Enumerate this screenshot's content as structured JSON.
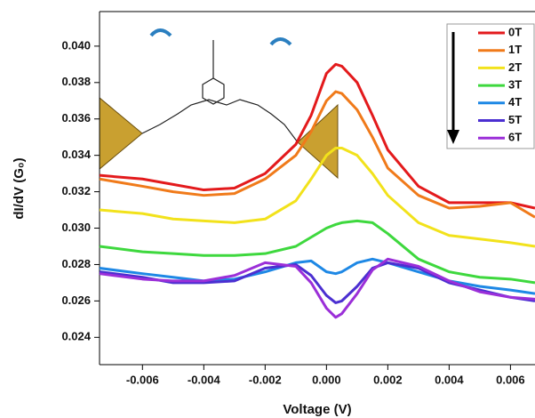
{
  "chart_data": {
    "type": "line",
    "x_label": "Voltage (V)",
    "y_label": "dI/dV (G₀)",
    "x": [
      -0.0074,
      -0.006,
      -0.005,
      -0.004,
      -0.003,
      -0.002,
      -0.001,
      -0.0005,
      0,
      0.0003,
      0.0005,
      0.001,
      0.0015,
      0.002,
      0.003,
      0.004,
      0.005,
      0.006,
      0.0068
    ],
    "series": [
      {
        "name": "0T",
        "color": "#e31a1c",
        "values": [
          0.0329,
          0.0327,
          0.0324,
          0.0321,
          0.0322,
          0.033,
          0.0346,
          0.0362,
          0.0385,
          0.039,
          0.0389,
          0.038,
          0.0362,
          0.0343,
          0.0323,
          0.0314,
          0.0314,
          0.0314,
          0.0311
        ]
      },
      {
        "name": "1T",
        "color": "#f07a1a",
        "values": [
          0.0327,
          0.0323,
          0.032,
          0.0318,
          0.0319,
          0.0327,
          0.034,
          0.0353,
          0.037,
          0.0375,
          0.0374,
          0.0365,
          0.035,
          0.0333,
          0.0318,
          0.0311,
          0.0312,
          0.0314,
          0.0306
        ]
      },
      {
        "name": "2T",
        "color": "#f2e21b",
        "values": [
          0.031,
          0.0308,
          0.0305,
          0.0304,
          0.0303,
          0.0305,
          0.0315,
          0.0327,
          0.034,
          0.0344,
          0.0344,
          0.034,
          0.033,
          0.0318,
          0.0303,
          0.0296,
          0.0294,
          0.0292,
          0.029
        ]
      },
      {
        "name": "3T",
        "color": "#3ed83e",
        "values": [
          0.029,
          0.0287,
          0.0286,
          0.0285,
          0.0285,
          0.0286,
          0.029,
          0.0295,
          0.03,
          0.0302,
          0.0303,
          0.0304,
          0.0303,
          0.0297,
          0.0283,
          0.0276,
          0.0273,
          0.0272,
          0.027
        ]
      },
      {
        "name": "4T",
        "color": "#1e88e5",
        "values": [
          0.0278,
          0.0275,
          0.0273,
          0.0271,
          0.0272,
          0.0276,
          0.0281,
          0.0282,
          0.0276,
          0.0275,
          0.0276,
          0.0281,
          0.0283,
          0.0281,
          0.0276,
          0.0271,
          0.0268,
          0.0266,
          0.0264
        ]
      },
      {
        "name": "5T",
        "color": "#4b2fd1",
        "values": [
          0.0276,
          0.0273,
          0.027,
          0.027,
          0.0271,
          0.0278,
          0.028,
          0.0274,
          0.0263,
          0.0259,
          0.026,
          0.0268,
          0.0278,
          0.0281,
          0.0278,
          0.027,
          0.0266,
          0.0262,
          0.026
        ]
      },
      {
        "name": "6T",
        "color": "#9b2fd8",
        "values": [
          0.0275,
          0.0272,
          0.0271,
          0.0271,
          0.0274,
          0.0281,
          0.0279,
          0.027,
          0.0256,
          0.0251,
          0.0253,
          0.0264,
          0.0277,
          0.0283,
          0.0279,
          0.0271,
          0.0265,
          0.0262,
          0.0261
        ]
      }
    ],
    "xlim": [
      -0.0074,
      0.0068
    ],
    "ylim": [
      0.0225,
      0.0419
    ],
    "xticks": [
      -0.006,
      -0.004,
      -0.002,
      {
        "value": 0,
        "label": "0.000"
      },
      0.002,
      0.004,
      0.006
    ],
    "yticks": [
      0.024,
      0.026,
      0.028,
      {
        "value": 0.03,
        "label": "0.030"
      },
      {
        "value": 0.032,
        "label": "0.032"
      },
      {
        "value": 0.034,
        "label": "0.034"
      },
      {
        "value": 0.036,
        "label": "0.036"
      },
      {
        "value": 0.038,
        "label": "0.038"
      },
      {
        "value": 0.04,
        "label": "0.040"
      }
    ],
    "legend": "top-right"
  }
}
